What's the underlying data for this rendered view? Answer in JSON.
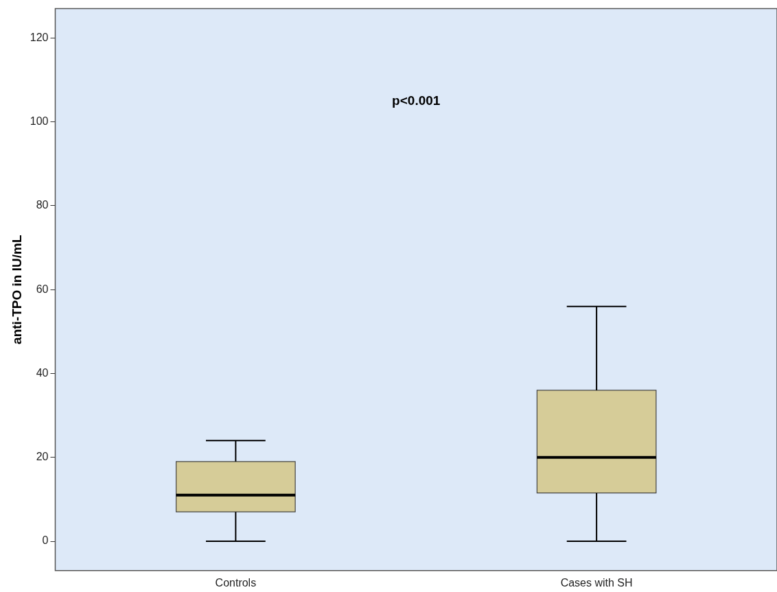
{
  "chart_data": {
    "type": "box",
    "ylabel": "anti-TPO in IU/mL",
    "categories": [
      "Controls",
      "Cases with SH"
    ],
    "color": "#d6cc98",
    "boxes": [
      {
        "low": 0,
        "q1": 7,
        "median": 11,
        "q3": 19,
        "high": 24
      },
      {
        "low": 0,
        "q1": 11.5,
        "median": 20,
        "q3": 36,
        "high": 56
      }
    ],
    "ylim": [
      -7,
      127
    ],
    "yticks": [
      0,
      20,
      40,
      60,
      80,
      100,
      120
    ],
    "grid": false,
    "legend": false,
    "annotations": [
      "p<0.001"
    ]
  }
}
